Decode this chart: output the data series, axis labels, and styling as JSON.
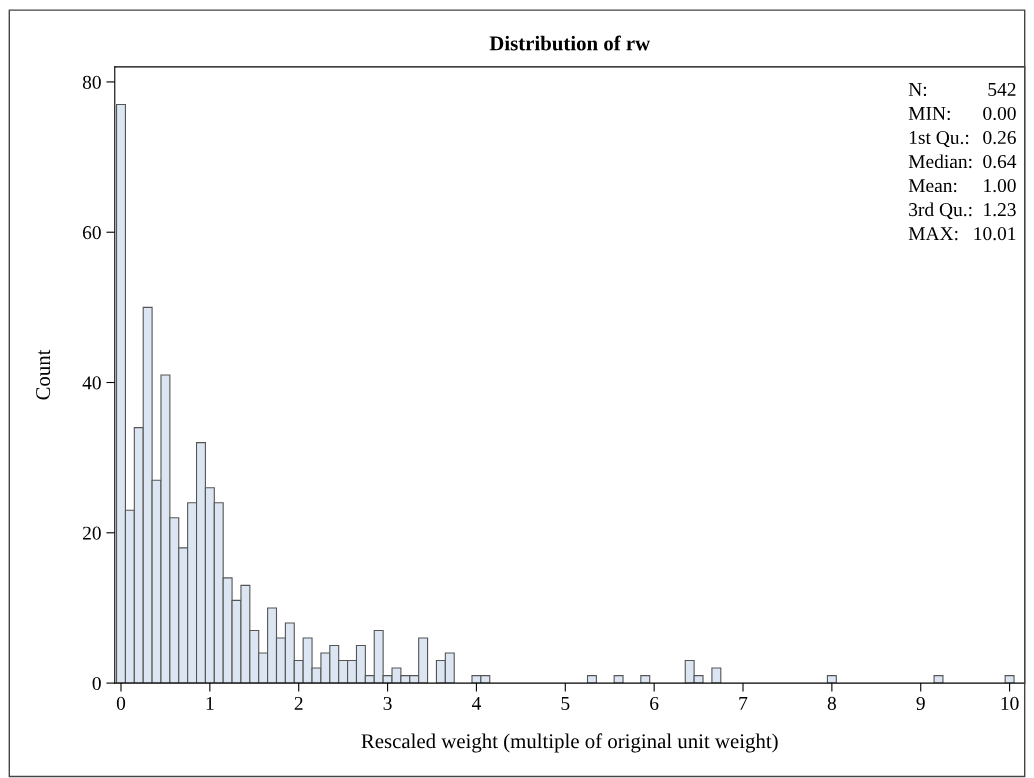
{
  "chart_data": {
    "type": "histogram",
    "title": "Distribution of rw",
    "xlabel": "Rescaled weight (multiple of original unit weight)",
    "ylabel": "Count",
    "bins": [
      -0.05,
      0.05,
      0.15,
      0.25,
      0.35,
      0.45,
      0.55,
      0.65,
      0.75,
      0.85,
      0.95,
      1.05,
      1.15,
      1.25,
      1.35,
      1.45,
      1.55,
      1.65,
      1.75,
      1.85,
      1.95,
      2.05,
      2.15,
      2.25,
      2.35,
      2.45,
      2.55,
      2.65,
      2.75,
      2.85,
      2.95,
      3.05,
      3.15,
      3.25,
      3.35,
      3.45,
      3.55,
      3.65,
      3.75,
      3.85,
      3.95,
      4.05,
      4.15,
      4.25,
      4.35,
      4.45,
      4.55,
      4.65,
      4.75,
      4.85,
      4.95,
      5.05,
      5.15,
      5.25,
      5.35,
      5.45,
      5.55,
      5.65,
      5.75,
      5.85,
      5.95,
      6.05,
      6.15,
      6.25,
      6.35,
      6.45,
      6.55,
      6.65,
      6.75,
      6.85,
      6.95,
      7.05,
      7.15,
      7.25,
      7.35,
      7.45,
      7.55,
      7.65,
      7.75,
      7.85,
      7.95,
      8.05,
      8.15,
      8.25,
      8.35,
      8.45,
      8.55,
      8.65,
      8.75,
      8.85,
      8.95,
      9.05,
      9.15,
      9.25,
      9.35,
      9.45,
      9.55,
      9.65,
      9.75,
      9.85,
      9.95,
      10.05
    ],
    "values": [
      77,
      23,
      34,
      50,
      27,
      41,
      22,
      18,
      24,
      32,
      26,
      24,
      14,
      11,
      13,
      7,
      4,
      10,
      6,
      8,
      3,
      6,
      2,
      4,
      5,
      3,
      3,
      5,
      1,
      7,
      1,
      2,
      1,
      1,
      6,
      0,
      3,
      4,
      0,
      0,
      1,
      1,
      0,
      0,
      0,
      0,
      0,
      0,
      0,
      0,
      0,
      0,
      0,
      1,
      0,
      0,
      1,
      0,
      0,
      1,
      0,
      0,
      0,
      0,
      3,
      1,
      0,
      2,
      0,
      0,
      0,
      0,
      0,
      0,
      0,
      0,
      0,
      0,
      0,
      0,
      1,
      0,
      0,
      0,
      0,
      0,
      0,
      0,
      0,
      0,
      0,
      0,
      1,
      0,
      0,
      0,
      0,
      0,
      0,
      0,
      1
    ],
    "color": "#dce6f2",
    "xlim": [
      -0.07,
      10.17
    ],
    "xticks": [
      0,
      1,
      2,
      3,
      4,
      5,
      6,
      7,
      8,
      9,
      10
    ],
    "ylim": [
      0,
      82
    ],
    "yticks": [
      0,
      20,
      40,
      60,
      80
    ],
    "grid": false,
    "legend": false,
    "annotations": [
      "N:",
      "542",
      "MIN:",
      "0.00",
      "1st Qu.:",
      "0.26",
      "Median:",
      "0.64",
      "Mean:",
      "1.00",
      "3rd Qu.:",
      "1.23",
      "MAX:",
      "10.01"
    ]
  }
}
